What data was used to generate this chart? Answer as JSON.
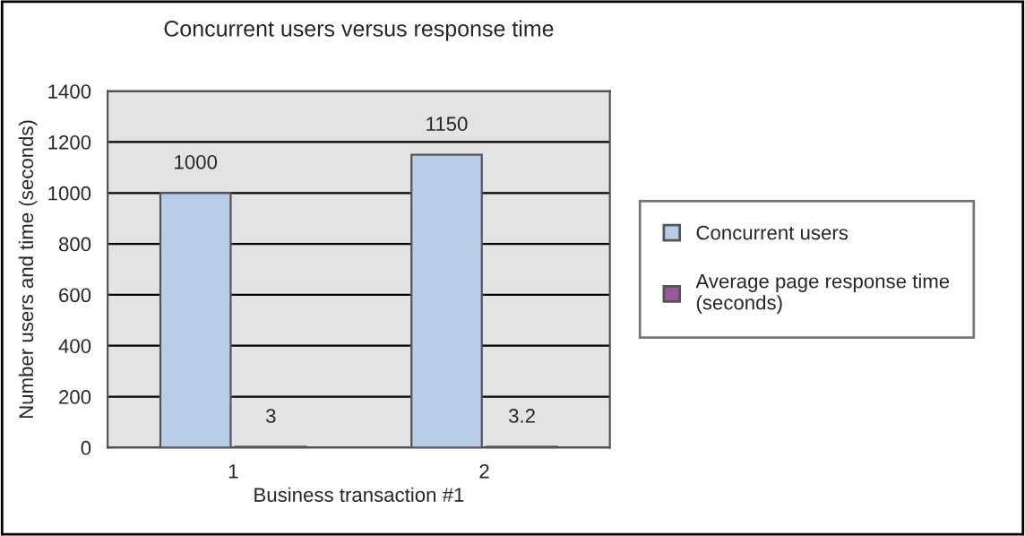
{
  "chart_data": {
    "type": "bar",
    "title": "Concurrent users versus response time",
    "xlabel": "Business transaction #1",
    "ylabel": "Number users and time (seconds)",
    "categories": [
      "1",
      "2"
    ],
    "series": [
      {
        "name": "Concurrent users",
        "color": "#b9cdea",
        "values": [
          1000,
          1150
        ]
      },
      {
        "name": "Average page response time\n(seconds)",
        "color": "#9a5a9a",
        "values": [
          3,
          3.2
        ]
      }
    ],
    "ylim": [
      0,
      1400
    ],
    "yticks": [
      0,
      200,
      400,
      600,
      800,
      1000,
      1200,
      1400
    ],
    "grid": "y",
    "legend": "right",
    "data_labels": true
  }
}
